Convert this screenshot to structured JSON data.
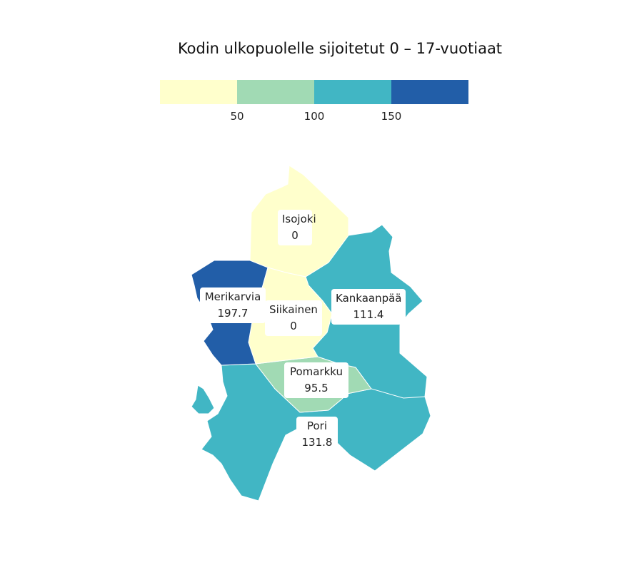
{
  "title": "Kodin ulkopuolelle sijoitetut 0 – 17-vuotiaat",
  "legend": {
    "bins": [
      {
        "color": "#ffffcc"
      },
      {
        "color": "#a1dab4"
      },
      {
        "color": "#41b6c4"
      },
      {
        "color": "#225ea8"
      }
    ],
    "ticks": [
      "50",
      "100",
      "150"
    ]
  },
  "regions": [
    {
      "name": "Isojoki",
      "value": "0",
      "color": "#ffffcc"
    },
    {
      "name": "Merikarvia",
      "value": "197.7",
      "color": "#225ea8"
    },
    {
      "name": "Siikainen",
      "value": "0",
      "color": "#ffffcc"
    },
    {
      "name": "Kankaanpää",
      "value": "111.4",
      "color": "#41b6c4"
    },
    {
      "name": "Pomarkku",
      "value": "95.5",
      "color": "#a1dab4"
    },
    {
      "name": "Pori",
      "value": "131.8",
      "color": "#41b6c4"
    }
  ]
}
